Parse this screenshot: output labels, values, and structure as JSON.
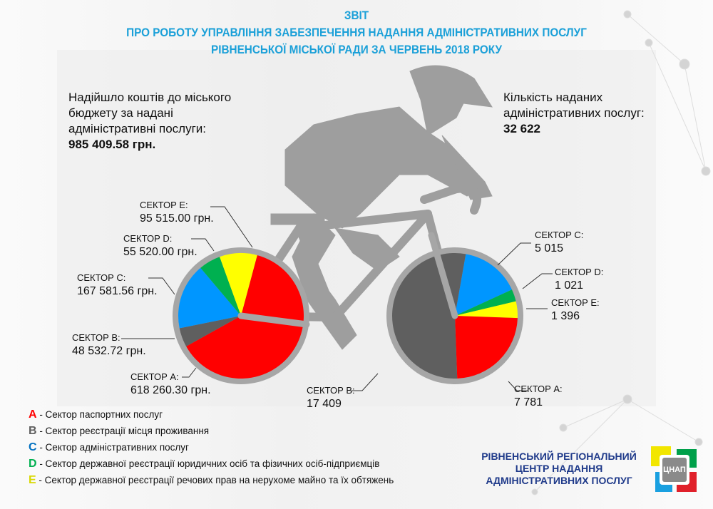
{
  "title": {
    "line1": "ЗВІТ",
    "line2": "ПРО РОБОТУ УПРАВЛІННЯ ЗАБЕЗПЕЧЕННЯ НАДАННЯ АДМІНІСТРАТИВНИХ ПОСЛУГ",
    "line3": "РІВНЕНСЬКОЇ МІСЬКОЇ РАДИ ЗА ЧЕРВЕНЬ 2018 РОКУ"
  },
  "revenue": {
    "line1": "Надійшло коштів до міського",
    "line2": "бюджету за надані",
    "line3": "адміністративні послуги:",
    "value": "985 409.58 грн."
  },
  "services": {
    "line1": "Кількість наданих",
    "line2": "адміністративних послуг:",
    "value": "32 622"
  },
  "colors": {
    "A": "#ff0000",
    "B": "#5f5f5f",
    "C": "#0096ff",
    "D": "#00b050",
    "E": "#ffff00",
    "title": "#1ba0d8",
    "org": "#1f3a8a"
  },
  "chart_data": [
    {
      "type": "pie",
      "title": "Надійшло коштів (грн.)",
      "categories": [
        "A",
        "B",
        "C",
        "D",
        "E"
      ],
      "labels": [
        "СЕКТОР А:",
        "СЕКТОР B:",
        "СЕКТОР C:",
        "СЕКТОР D:",
        "СЕКТОР E:"
      ],
      "value_labels": [
        "618 260.30 грн.",
        "48 532.72 грн.",
        "167 581.56 грн.",
        "55 520.00 грн.",
        "95 515.00 грн."
      ],
      "values": [
        618260.3,
        48532.72,
        167581.56,
        55520.0,
        95515.0
      ]
    },
    {
      "type": "pie",
      "title": "Кількість наданих послуг",
      "categories": [
        "A",
        "B",
        "C",
        "D",
        "E"
      ],
      "labels": [
        "СЕКТОР А:",
        "СЕКТОР B:",
        "СЕКТОР C:",
        "СЕКТОР D:",
        "СЕКТОР E:"
      ],
      "value_labels": [
        "7 781",
        "17 409",
        "5 015",
        "1 021",
        "1 396"
      ],
      "values": [
        7781,
        17409,
        5015,
        1021,
        1396
      ]
    }
  ],
  "legend": [
    {
      "letter": "A",
      "text": " - Сектор паспортних послуг"
    },
    {
      "letter": "B",
      "text": " - Сектор реєстрації місця проживання"
    },
    {
      "letter": "C",
      "text": " - Сектор адміністративних послуг"
    },
    {
      "letter": "D",
      "text": " - Сектор державної реєстрації юридичних осіб та фізичних осіб-підприємців"
    },
    {
      "letter": "E",
      "text": " - Сектор державної реєстрації речових прав на нерухоме майно та їх обтяжень"
    }
  ],
  "org": {
    "line1": "РІВНЕНСЬКИЙ РЕГІОНАЛЬНИЙ",
    "line2": "ЦЕНТР НАДАННЯ",
    "line3": "АДМІНІСТРАТИВНИХ ПОСЛУГ",
    "logo_text": "ЦНАП"
  }
}
